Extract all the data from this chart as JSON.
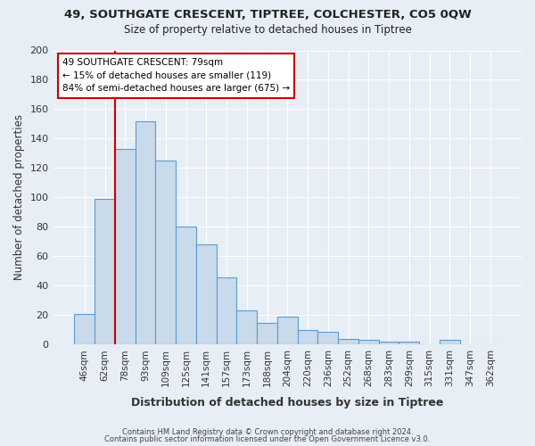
{
  "title1": "49, SOUTHGATE CRESCENT, TIPTREE, COLCHESTER, CO5 0QW",
  "title2": "Size of property relative to detached houses in Tiptree",
  "xlabel": "Distribution of detached houses by size in Tiptree",
  "ylabel": "Number of detached properties",
  "categories": [
    "46sqm",
    "62sqm",
    "78sqm",
    "93sqm",
    "109sqm",
    "125sqm",
    "141sqm",
    "157sqm",
    "173sqm",
    "188sqm",
    "204sqm",
    "220sqm",
    "236sqm",
    "252sqm",
    "268sqm",
    "283sqm",
    "299sqm",
    "315sqm",
    "331sqm",
    "347sqm",
    "362sqm"
  ],
  "values": [
    21,
    99,
    133,
    152,
    125,
    80,
    68,
    46,
    23,
    15,
    19,
    10,
    9,
    4,
    3,
    2,
    2,
    0,
    3,
    0,
    0
  ],
  "bar_color": "#c9daea",
  "bar_edge_color": "#5b9bd5",
  "vline_color": "#cc0000",
  "vline_x": 2,
  "annotation_text": "49 SOUTHGATE CRESCENT: 79sqm\n← 15% of detached houses are smaller (119)\n84% of semi-detached houses are larger (675) →",
  "annotation_box_color": "#ffffff",
  "annotation_box_edge": "#cc0000",
  "bg_color": "#e8eef5",
  "footer_line1": "Contains HM Land Registry data © Crown copyright and database right 2024.",
  "footer_line2": "Contains public sector information licensed under the Open Government Licence v3.0.",
  "ylim": [
    0,
    200
  ],
  "yticks": [
    0,
    20,
    40,
    60,
    80,
    100,
    120,
    140,
    160,
    180,
    200
  ]
}
